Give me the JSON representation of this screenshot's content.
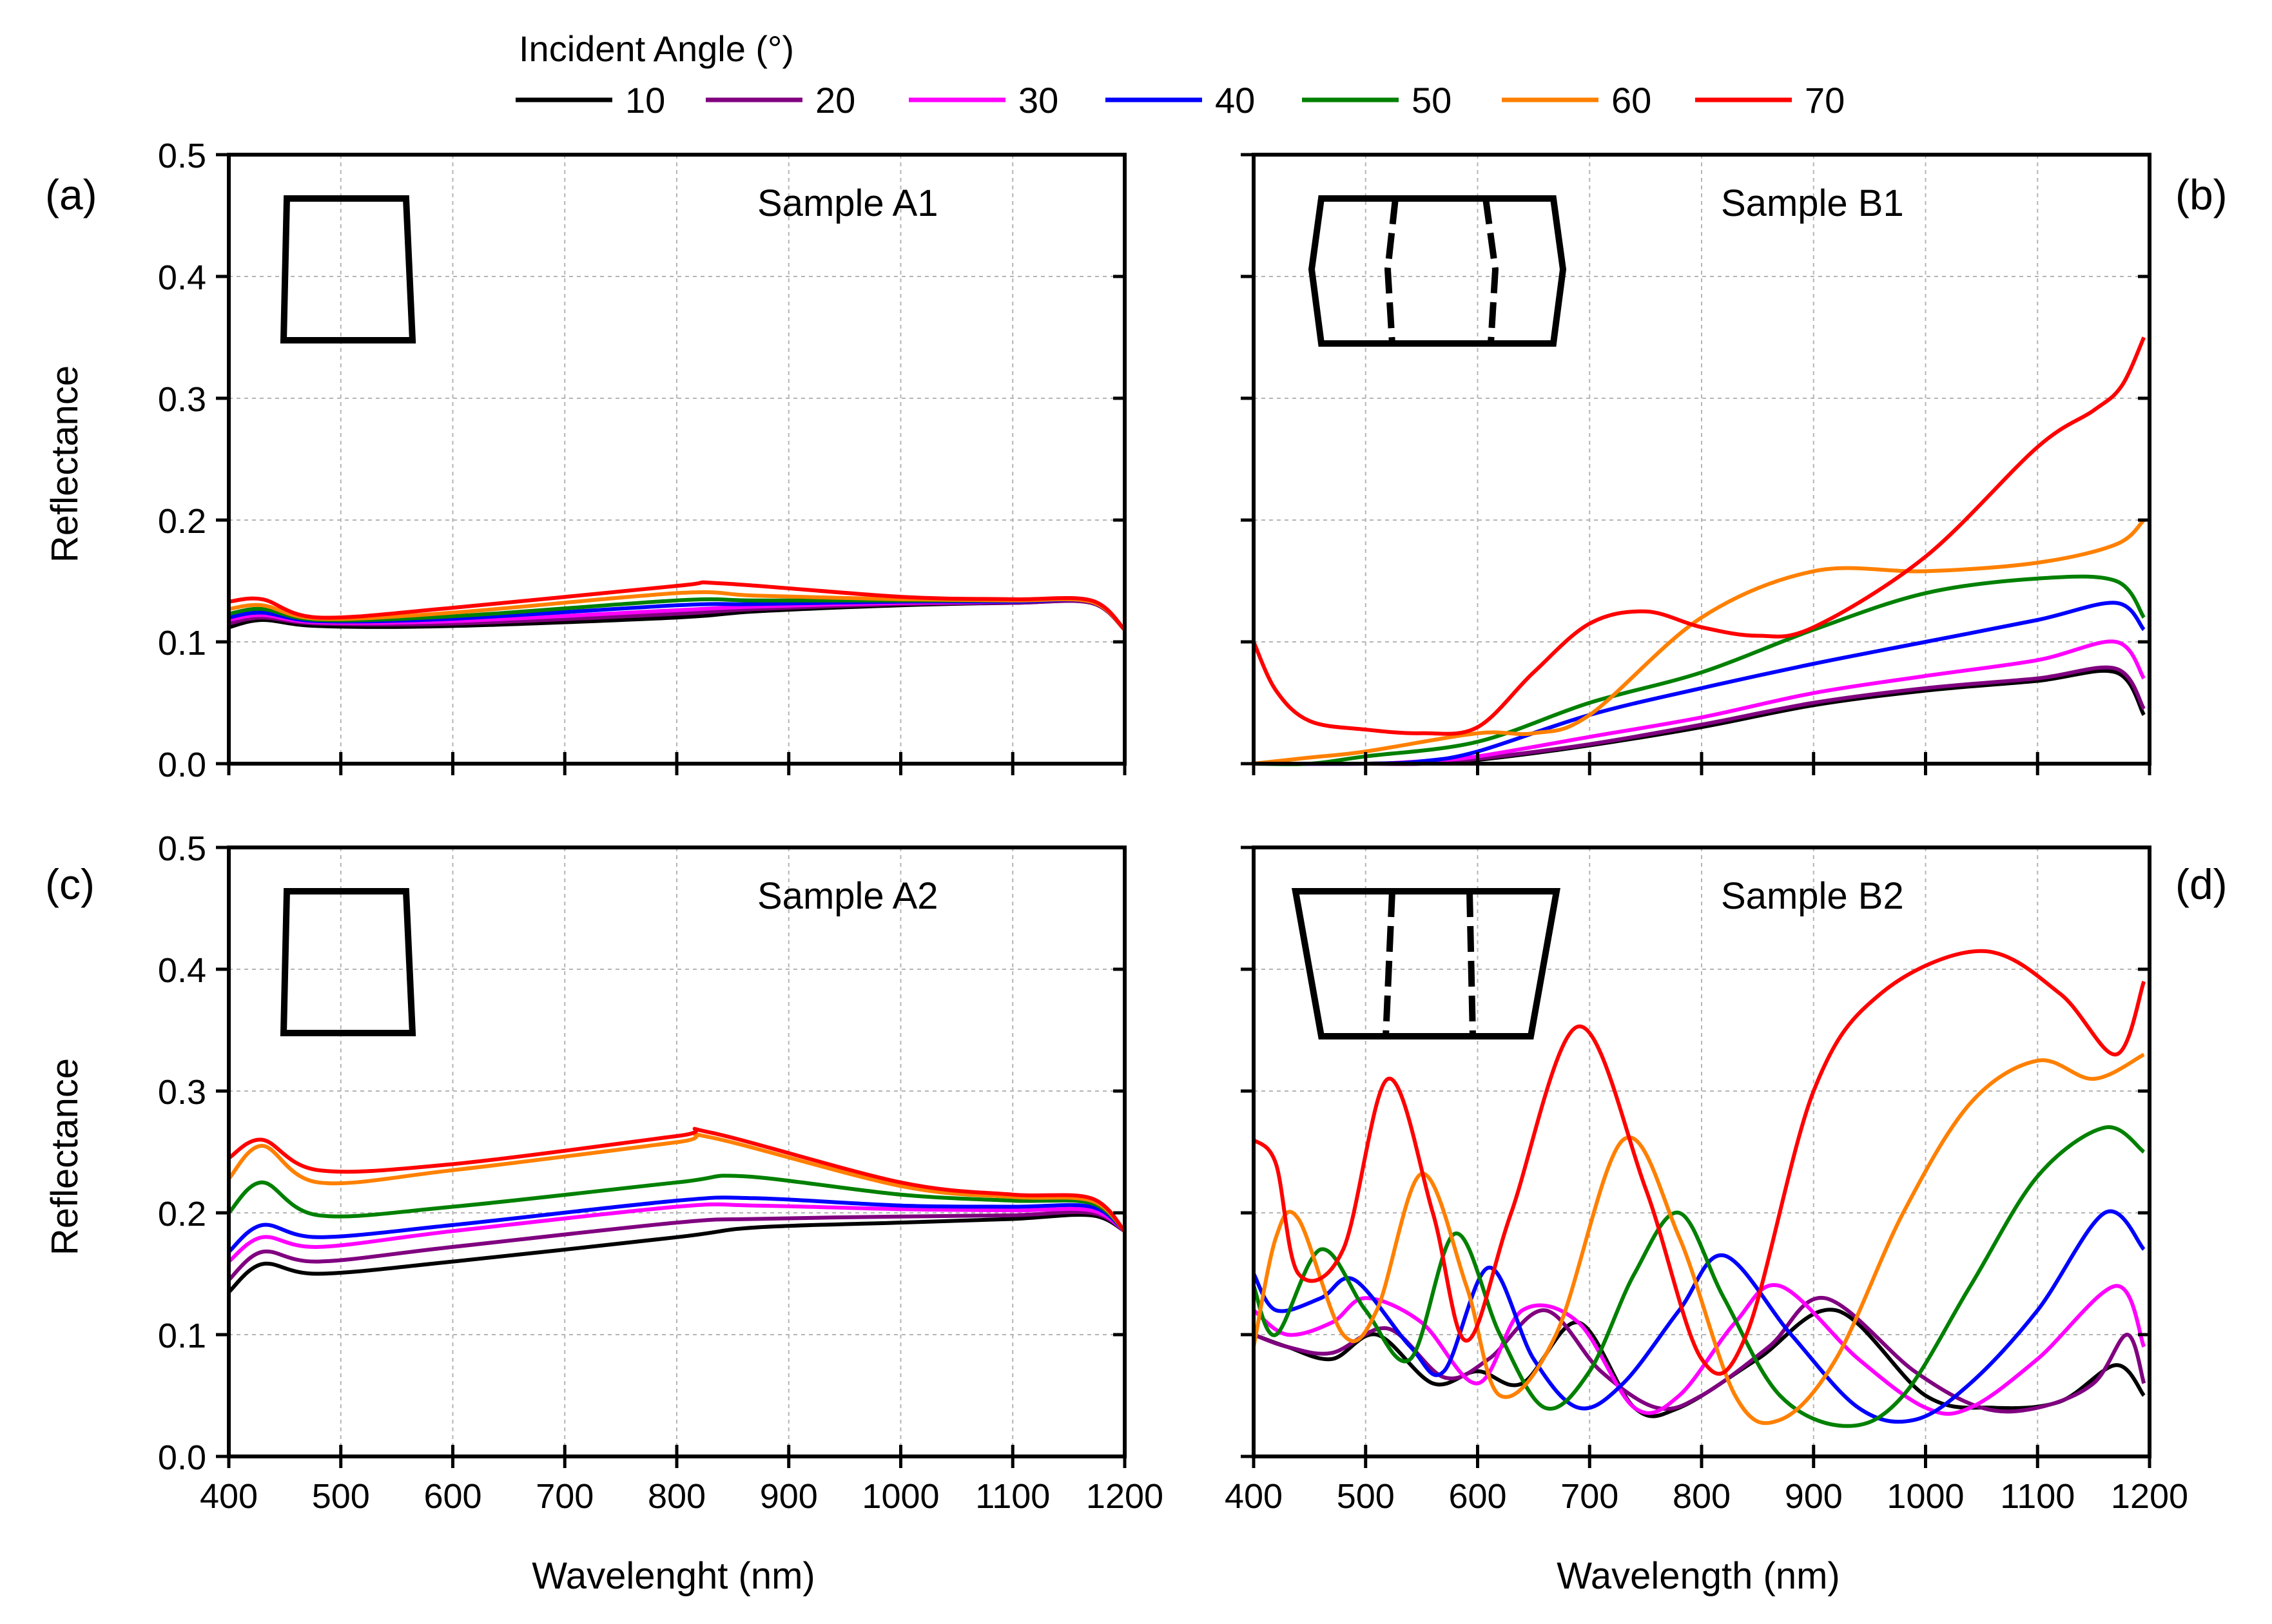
{
  "legend": {
    "title": "Incident Angle (°)",
    "entries": [
      {
        "label": "10",
        "color": "#000000"
      },
      {
        "label": "20",
        "color": "#800080"
      },
      {
        "label": "30",
        "color": "#ff00ff"
      },
      {
        "label": "40",
        "color": "#0000ff"
      },
      {
        "label": "50",
        "color": "#008000"
      },
      {
        "label": "60",
        "color": "#ff8000"
      },
      {
        "label": "70",
        "color": "#ff0000"
      }
    ]
  },
  "chart_data": [
    {
      "id": "a",
      "type": "line",
      "panel_label": "(a)",
      "title": "Sample A1",
      "xlabel": "",
      "ylabel": "Reflectance",
      "xlim": [
        400,
        1200
      ],
      "ylim": [
        0,
        0.5
      ],
      "xticks": [
        "400",
        "500",
        "600",
        "700",
        "800",
        "900",
        "1000",
        "1100",
        "1200"
      ],
      "yticks": [
        "0.0",
        "0.1",
        "0.2",
        "0.3",
        "0.4",
        "0.5"
      ],
      "inset": "plain",
      "grid": true,
      "series": [
        {
          "name": "10",
          "x": [
            400,
            430,
            480,
            600,
            800,
            870,
            1000,
            1100,
            1170,
            1200
          ],
          "y": [
            0.112,
            0.118,
            0.113,
            0.113,
            0.12,
            0.125,
            0.13,
            0.132,
            0.132,
            0.11
          ]
        },
        {
          "name": "20",
          "x": [
            400,
            430,
            480,
            600,
            800,
            870,
            1000,
            1100,
            1170,
            1200
          ],
          "y": [
            0.115,
            0.12,
            0.115,
            0.115,
            0.123,
            0.127,
            0.131,
            0.132,
            0.132,
            0.11
          ]
        },
        {
          "name": "30",
          "x": [
            400,
            430,
            480,
            600,
            800,
            870,
            1000,
            1100,
            1170,
            1200
          ],
          "y": [
            0.118,
            0.122,
            0.116,
            0.117,
            0.126,
            0.129,
            0.132,
            0.133,
            0.133,
            0.11
          ]
        },
        {
          "name": "40",
          "x": [
            400,
            430,
            480,
            600,
            800,
            870,
            1000,
            1100,
            1170,
            1200
          ],
          "y": [
            0.12,
            0.124,
            0.117,
            0.119,
            0.13,
            0.131,
            0.133,
            0.133,
            0.133,
            0.11
          ]
        },
        {
          "name": "50",
          "x": [
            400,
            430,
            480,
            600,
            800,
            870,
            1000,
            1100,
            1170,
            1200
          ],
          "y": [
            0.123,
            0.127,
            0.118,
            0.121,
            0.134,
            0.134,
            0.134,
            0.134,
            0.133,
            0.11
          ]
        },
        {
          "name": "60",
          "x": [
            400,
            430,
            480,
            600,
            800,
            870,
            1000,
            1100,
            1170,
            1200
          ],
          "y": [
            0.127,
            0.13,
            0.119,
            0.124,
            0.14,
            0.138,
            0.135,
            0.134,
            0.133,
            0.11
          ]
        },
        {
          "name": "70",
          "x": [
            400,
            430,
            480,
            600,
            800,
            840,
            1000,
            1100,
            1170,
            1200
          ],
          "y": [
            0.133,
            0.135,
            0.12,
            0.128,
            0.146,
            0.148,
            0.137,
            0.135,
            0.134,
            0.11
          ]
        }
      ]
    },
    {
      "id": "b",
      "type": "line",
      "panel_label": "(b)",
      "title": "Sample B1",
      "xlabel": "",
      "ylabel": "",
      "xlim": [
        400,
        1200
      ],
      "ylim": [
        0,
        0.5
      ],
      "xticks": [
        "400",
        "500",
        "600",
        "700",
        "800",
        "900",
        "1000",
        "1100",
        "1200"
      ],
      "yticks": [
        "0.0",
        "0.1",
        "0.2",
        "0.3",
        "0.4",
        "0.5"
      ],
      "inset": "dashed-straight",
      "grid": true,
      "series": [
        {
          "name": "10",
          "x": [
            400,
            500,
            550,
            600,
            700,
            800,
            900,
            1000,
            1100,
            1170,
            1195
          ],
          "y": [
            0,
            0,
            0,
            0.003,
            0.015,
            0.03,
            0.048,
            0.06,
            0.068,
            0.075,
            0.04
          ]
        },
        {
          "name": "20",
          "x": [
            400,
            500,
            550,
            600,
            700,
            800,
            900,
            1000,
            1100,
            1170,
            1195
          ],
          "y": [
            0,
            0,
            0,
            0.004,
            0.016,
            0.032,
            0.05,
            0.062,
            0.07,
            0.078,
            0.045
          ]
        },
        {
          "name": "30",
          "x": [
            400,
            500,
            550,
            600,
            700,
            800,
            900,
            1000,
            1100,
            1170,
            1195
          ],
          "y": [
            0,
            0,
            0.002,
            0.006,
            0.022,
            0.038,
            0.058,
            0.072,
            0.085,
            0.1,
            0.07
          ]
        },
        {
          "name": "40",
          "x": [
            400,
            500,
            550,
            600,
            700,
            800,
            900,
            1000,
            1100,
            1170,
            1195
          ],
          "y": [
            0,
            0,
            0.002,
            0.01,
            0.04,
            0.062,
            0.082,
            0.1,
            0.118,
            0.132,
            0.11
          ]
        },
        {
          "name": "50",
          "x": [
            400,
            450,
            500,
            600,
            700,
            800,
            900,
            1000,
            1100,
            1170,
            1195
          ],
          "y": [
            0,
            0,
            0.006,
            0.018,
            0.05,
            0.075,
            0.11,
            0.14,
            0.152,
            0.15,
            0.12
          ]
        },
        {
          "name": "60",
          "x": [
            400,
            450,
            500,
            600,
            650,
            700,
            800,
            900,
            1000,
            1100,
            1170,
            1195
          ],
          "y": [
            0,
            0.005,
            0.01,
            0.025,
            0.025,
            0.04,
            0.12,
            0.158,
            0.158,
            0.165,
            0.18,
            0.2
          ]
        },
        {
          "name": "70",
          "x": [
            400,
            420,
            450,
            500,
            550,
            600,
            650,
            700,
            750,
            800,
            850,
            900,
            1000,
            1100,
            1150,
            1175,
            1195
          ],
          "y": [
            0.1,
            0.06,
            0.035,
            0.028,
            0.025,
            0.03,
            0.075,
            0.115,
            0.125,
            0.112,
            0.105,
            0.112,
            0.17,
            0.26,
            0.29,
            0.31,
            0.35
          ]
        }
      ]
    },
    {
      "id": "c",
      "type": "line",
      "panel_label": "(c)",
      "title": "Sample A2",
      "xlabel": "Wavelenght (nm)",
      "ylabel": "Reflectance",
      "xlim": [
        400,
        1200
      ],
      "ylim": [
        0,
        0.5
      ],
      "xticks": [
        "400",
        "500",
        "600",
        "700",
        "800",
        "900",
        "1000",
        "1100",
        "1200"
      ],
      "yticks": [
        "0.0",
        "0.1",
        "0.2",
        "0.3",
        "0.4",
        "0.5"
      ],
      "inset": "plain",
      "grid": true,
      "series": [
        {
          "name": "10",
          "x": [
            400,
            430,
            480,
            600,
            800,
            870,
            1000,
            1100,
            1170,
            1200
          ],
          "y": [
            0.135,
            0.158,
            0.15,
            0.16,
            0.18,
            0.188,
            0.192,
            0.195,
            0.198,
            0.185
          ]
        },
        {
          "name": "20",
          "x": [
            400,
            430,
            480,
            600,
            800,
            870,
            1000,
            1100,
            1170,
            1200
          ],
          "y": [
            0.145,
            0.168,
            0.16,
            0.172,
            0.192,
            0.195,
            0.197,
            0.198,
            0.2,
            0.185
          ]
        },
        {
          "name": "30",
          "x": [
            400,
            430,
            480,
            600,
            800,
            870,
            1000,
            1100,
            1170,
            1200
          ],
          "y": [
            0.16,
            0.18,
            0.172,
            0.185,
            0.205,
            0.206,
            0.203,
            0.202,
            0.202,
            0.185
          ]
        },
        {
          "name": "40",
          "x": [
            400,
            430,
            480,
            600,
            800,
            870,
            1000,
            1100,
            1170,
            1200
          ],
          "y": [
            0.168,
            0.19,
            0.18,
            0.19,
            0.21,
            0.212,
            0.206,
            0.205,
            0.205,
            0.185
          ]
        },
        {
          "name": "50",
          "x": [
            400,
            430,
            480,
            600,
            800,
            860,
            1000,
            1100,
            1170,
            1200
          ],
          "y": [
            0.2,
            0.225,
            0.198,
            0.205,
            0.225,
            0.23,
            0.215,
            0.21,
            0.208,
            0.185
          ]
        },
        {
          "name": "60",
          "x": [
            400,
            430,
            480,
            600,
            800,
            830,
            1000,
            1100,
            1170,
            1200
          ],
          "y": [
            0.228,
            0.255,
            0.225,
            0.235,
            0.258,
            0.262,
            0.222,
            0.213,
            0.21,
            0.185
          ]
        },
        {
          "name": "70",
          "x": [
            400,
            430,
            480,
            600,
            800,
            830,
            1000,
            1100,
            1170,
            1200
          ],
          "y": [
            0.245,
            0.26,
            0.235,
            0.24,
            0.263,
            0.266,
            0.225,
            0.215,
            0.212,
            0.185
          ]
        }
      ]
    },
    {
      "id": "d",
      "type": "line",
      "panel_label": "(d)",
      "title": "Sample B2",
      "xlabel": "Wavelength (nm)",
      "ylabel": "",
      "xlim": [
        400,
        1200
      ],
      "ylim": [
        0,
        0.5
      ],
      "xticks": [
        "400",
        "500",
        "600",
        "700",
        "800",
        "900",
        "1000",
        "1100",
        "1200"
      ],
      "yticks": [
        "0.0",
        "0.1",
        "0.2",
        "0.3",
        "0.4",
        "0.5"
      ],
      "inset": "dashed-tapered",
      "grid": true,
      "series": [
        {
          "name": "10",
          "x": [
            400,
            430,
            470,
            510,
            560,
            600,
            640,
            690,
            740,
            780,
            850,
            920,
            1000,
            1060,
            1120,
            1170,
            1195
          ],
          "y": [
            0.1,
            0.09,
            0.08,
            0.1,
            0.06,
            0.07,
            0.06,
            0.11,
            0.04,
            0.04,
            0.08,
            0.12,
            0.05,
            0.04,
            0.045,
            0.075,
            0.05
          ]
        },
        {
          "name": "20",
          "x": [
            400,
            430,
            470,
            520,
            570,
            610,
            660,
            710,
            760,
            800,
            860,
            910,
            990,
            1050,
            1100,
            1150,
            1180,
            1195
          ],
          "y": [
            0.1,
            0.09,
            0.085,
            0.105,
            0.065,
            0.08,
            0.12,
            0.07,
            0.04,
            0.05,
            0.09,
            0.13,
            0.07,
            0.04,
            0.04,
            0.06,
            0.1,
            0.06
          ]
        },
        {
          "name": "30",
          "x": [
            400,
            430,
            470,
            500,
            550,
            600,
            640,
            690,
            740,
            780,
            830,
            870,
            940,
            1000,
            1040,
            1100,
            1170,
            1195
          ],
          "y": [
            0.12,
            0.1,
            0.11,
            0.13,
            0.11,
            0.06,
            0.12,
            0.11,
            0.04,
            0.05,
            0.11,
            0.14,
            0.08,
            0.04,
            0.04,
            0.08,
            0.14,
            0.09
          ]
        },
        {
          "name": "40",
          "x": [
            400,
            420,
            460,
            490,
            540,
            570,
            610,
            650,
            690,
            730,
            780,
            820,
            880,
            940,
            990,
            1040,
            1100,
            1160,
            1195
          ],
          "y": [
            0.15,
            0.12,
            0.13,
            0.145,
            0.09,
            0.07,
            0.155,
            0.08,
            0.04,
            0.06,
            0.12,
            0.165,
            0.1,
            0.04,
            0.03,
            0.06,
            0.12,
            0.2,
            0.17
          ]
        },
        {
          "name": "50",
          "x": [
            400,
            420,
            460,
            500,
            540,
            580,
            620,
            660,
            700,
            740,
            780,
            820,
            870,
            930,
            980,
            1040,
            1100,
            1160,
            1195
          ],
          "y": [
            0.14,
            0.1,
            0.17,
            0.12,
            0.08,
            0.183,
            0.1,
            0.04,
            0.07,
            0.15,
            0.2,
            0.13,
            0.05,
            0.025,
            0.05,
            0.14,
            0.23,
            0.27,
            0.25
          ]
        },
        {
          "name": "60",
          "x": [
            400,
            420,
            440,
            480,
            510,
            550,
            590,
            620,
            670,
            730,
            780,
            830,
            870,
            920,
            980,
            1040,
            1100,
            1150,
            1195
          ],
          "y": [
            0.09,
            0.18,
            0.195,
            0.1,
            0.12,
            0.232,
            0.14,
            0.05,
            0.1,
            0.26,
            0.18,
            0.05,
            0.03,
            0.08,
            0.2,
            0.29,
            0.325,
            0.31,
            0.33
          ]
        },
        {
          "name": "70",
          "x": [
            400,
            420,
            440,
            480,
            520,
            560,
            590,
            630,
            690,
            750,
            800,
            840,
            900,
            960,
            1050,
            1120,
            1170,
            1195
          ],
          "y": [
            0.26,
            0.24,
            0.15,
            0.17,
            0.31,
            0.2,
            0.095,
            0.2,
            0.353,
            0.22,
            0.08,
            0.1,
            0.3,
            0.38,
            0.415,
            0.38,
            0.33,
            0.39
          ]
        }
      ]
    }
  ]
}
